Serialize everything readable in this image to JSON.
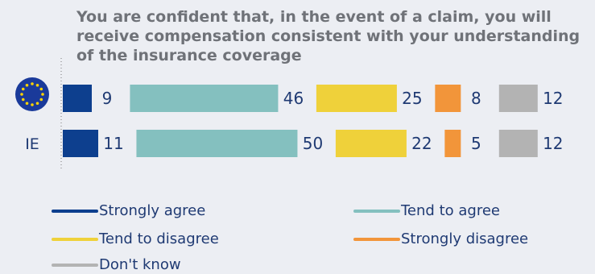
{
  "chart_data": {
    "type": "bar",
    "stacked": true,
    "orientation": "horizontal",
    "title": "You are confident that, in the event of a claim, you will receive compensation consistent with your understanding of the insurance coverage",
    "categories": [
      "EU",
      "IE"
    ],
    "category_labels": [
      "",
      "IE"
    ],
    "first_category_icon": "eu-flag-icon",
    "series": [
      {
        "name": "Strongly agree",
        "color": "#0d3f8e",
        "values": [
          9,
          11
        ]
      },
      {
        "name": "Tend to agree",
        "color": "#84c0bf",
        "values": [
          46,
          50
        ]
      },
      {
        "name": "Tend to disagree",
        "color": "#efd13a",
        "values": [
          25,
          22
        ]
      },
      {
        "name": "Strongly disagree",
        "color": "#f2953a",
        "values": [
          8,
          5
        ]
      },
      {
        "name": "Don't know",
        "color": "#b3b3b3",
        "values": [
          12,
          12
        ]
      }
    ],
    "legend_position": "bottom",
    "grid": false
  }
}
